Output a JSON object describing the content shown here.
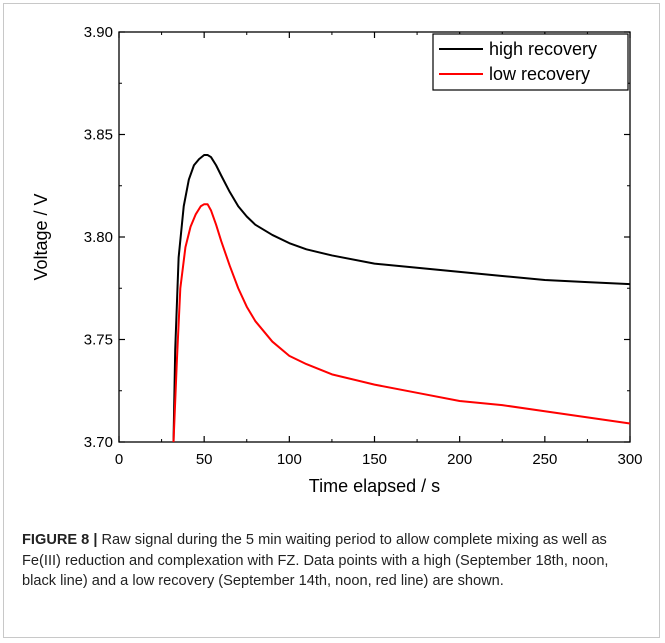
{
  "chart_data": {
    "type": "line",
    "xlabel": "Time elapsed / s",
    "ylabel": "Voltage / V",
    "xlim": [
      0,
      300
    ],
    "ylim": [
      3.7,
      3.9
    ],
    "xticks": [
      "0",
      "50",
      "100",
      "150",
      "200",
      "250",
      "300"
    ],
    "yticks": [
      "3.70",
      "3.75",
      "3.80",
      "3.85",
      "3.90"
    ],
    "grid": false,
    "legend_position": "top-right",
    "series": [
      {
        "name": "high recovery",
        "color": "#000000",
        "x": [
          32,
          33,
          35,
          38,
          41,
          44,
          47,
          50,
          52,
          54,
          57,
          60,
          65,
          70,
          75,
          80,
          90,
          100,
          110,
          125,
          150,
          175,
          200,
          225,
          250,
          275,
          300
        ],
        "y": [
          3.7,
          3.745,
          3.79,
          3.815,
          3.828,
          3.835,
          3.838,
          3.84,
          3.84,
          3.839,
          3.835,
          3.83,
          3.822,
          3.815,
          3.81,
          3.806,
          3.801,
          3.797,
          3.794,
          3.791,
          3.787,
          3.785,
          3.783,
          3.781,
          3.779,
          3.778,
          3.777
        ]
      },
      {
        "name": "low recovery",
        "color": "#ff0000",
        "x": [
          32,
          34,
          36,
          39,
          42,
          45,
          48,
          50,
          52,
          54,
          57,
          60,
          65,
          70,
          75,
          80,
          90,
          100,
          110,
          125,
          150,
          175,
          200,
          225,
          250,
          275,
          300
        ],
        "y": [
          3.7,
          3.74,
          3.775,
          3.795,
          3.805,
          3.811,
          3.815,
          3.816,
          3.816,
          3.813,
          3.806,
          3.798,
          3.786,
          3.775,
          3.766,
          3.759,
          3.749,
          3.742,
          3.738,
          3.733,
          3.728,
          3.724,
          3.72,
          3.718,
          3.715,
          3.712,
          3.709
        ]
      }
    ]
  },
  "caption": {
    "label": "FIGURE 8 |",
    "text": " Raw signal during the 5 min waiting period to allow complete mixing as well as Fe(III) reduction and complexation with FZ. Data points with a high (September 18th, noon, black line) and a low recovery (September 14th, noon, red line) are shown."
  }
}
